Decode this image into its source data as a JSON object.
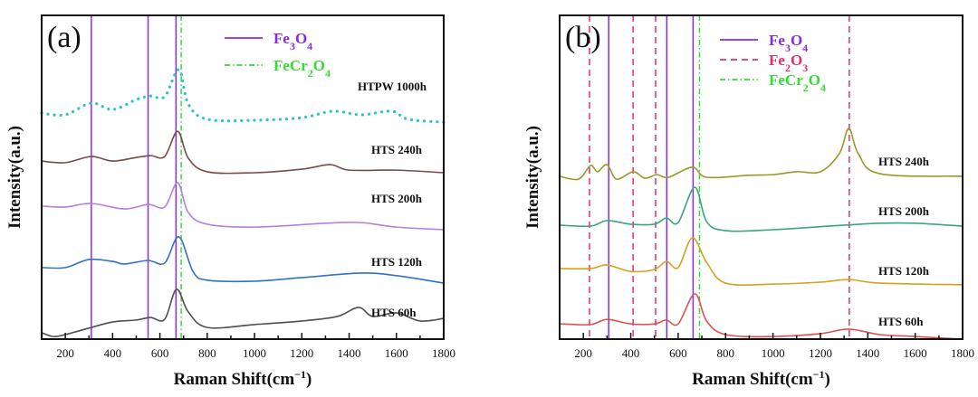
{
  "chart_data": [
    {
      "type": "line",
      "panel_label": "(a)",
      "xlabel": "Raman Shift(cm-1)",
      "ylabel": "Intensity(a.u.)",
      "xlim": [
        100,
        1800
      ],
      "ylim": [
        0,
        100
      ],
      "x_ticks": [
        200,
        400,
        600,
        800,
        1000,
        1200,
        1400,
        1600,
        1800
      ],
      "y_ticks_shown": false,
      "grid": false,
      "legend_position": "top-center",
      "reference_lines": [
        {
          "name": "Fe3O4",
          "style": "solid",
          "color": "#8a2be2",
          "label_color": "#8a2be2",
          "x": [
            310,
            550,
            668
          ]
        },
        {
          "name": "FeCr2O4",
          "style": "dash-dot",
          "color": "#33dd33",
          "label_color": "#33dd33",
          "x": [
            690
          ]
        }
      ],
      "series": [
        {
          "name": "HTPW 1000h",
          "color": "#2cc4c8",
          "style": "dotted",
          "x": [
            100,
            200,
            310,
            400,
            500,
            560,
            620,
            680,
            720,
            800,
            1000,
            1200,
            1330,
            1450,
            1580,
            1650,
            1800
          ],
          "y": [
            69.8,
            69.3,
            72.9,
            70.9,
            74.0,
            75.1,
            74.9,
            83.2,
            72.6,
            67.9,
            67.6,
            68.4,
            70.4,
            69.3,
            70.4,
            67.9,
            67.0
          ]
        },
        {
          "name": "HTS 240h",
          "color": "#7a4a4a",
          "style": "solid",
          "x": [
            100,
            200,
            310,
            400,
            500,
            560,
            620,
            675,
            720,
            800,
            1000,
            1200,
            1320,
            1400,
            1600,
            1800
          ],
          "y": [
            55.0,
            54.5,
            56.4,
            55.0,
            56.1,
            56.7,
            56.4,
            64.2,
            55.9,
            51.7,
            51.4,
            52.5,
            53.9,
            52.2,
            52.2,
            51.4
          ]
        },
        {
          "name": "HTS 200h",
          "color": "#b680d8",
          "style": "solid",
          "x": [
            100,
            200,
            310,
            450,
            550,
            620,
            675,
            720,
            800,
            1000,
            1300,
            1450,
            1600,
            1800
          ],
          "y": [
            41.1,
            40.8,
            41.9,
            40.2,
            41.6,
            40.8,
            48.3,
            39.1,
            35.5,
            34.6,
            35.8,
            36.0,
            34.6,
            33.8
          ]
        },
        {
          "name": "HTS 120h",
          "color": "#2f72c6",
          "style": "solid",
          "x": [
            100,
            200,
            300,
            400,
            450,
            550,
            620,
            680,
            740,
            800,
            1000,
            1200,
            1450,
            1600,
            1800
          ],
          "y": [
            22.1,
            22.1,
            24.6,
            24.0,
            23.2,
            24.3,
            23.5,
            31.6,
            20.9,
            18.2,
            17.9,
            19.0,
            20.4,
            19.6,
            17.3
          ]
        },
        {
          "name": "HTS 60h",
          "color": "#505050",
          "style": "solid",
          "x": [
            100,
            150,
            200,
            300,
            400,
            500,
            560,
            620,
            670,
            720,
            800,
            1000,
            1200,
            1350,
            1440,
            1500,
            1600,
            1700,
            1800
          ],
          "y": [
            2.0,
            0.8,
            1.4,
            3.4,
            5.3,
            5.9,
            6.7,
            6.1,
            15.4,
            8.4,
            3.6,
            4.5,
            5.6,
            7.0,
            9.8,
            7.0,
            8.1,
            5.6,
            6.4
          ]
        }
      ]
    },
    {
      "type": "line",
      "panel_label": "(b)",
      "xlabel": "Raman Shift(cm-1)",
      "ylabel": "Intensity(a.u.)",
      "xlim": [
        100,
        1800
      ],
      "ylim": [
        0,
        100
      ],
      "x_ticks": [
        200,
        400,
        600,
        800,
        1000,
        1200,
        1400,
        1600,
        1800
      ],
      "y_ticks_shown": false,
      "grid": false,
      "legend_position": "top-center",
      "reference_lines": [
        {
          "name": "Fe3O4",
          "style": "solid",
          "color": "#8a2be2",
          "label_color": "#8a2be2",
          "x": [
            307,
            552,
            663
          ]
        },
        {
          "name": "Fe2O3",
          "style": "dashed",
          "color": "#e0306a",
          "label_color": "#e0306a",
          "x": [
            226,
            410,
            505,
            1322
          ]
        },
        {
          "name": "FeCr2O4",
          "style": "dash-dot",
          "color": "#33dd33",
          "label_color": "#33dd33",
          "x": [
            690
          ]
        }
      ],
      "series": [
        {
          "name": "HTS 240h",
          "color": "#9a9a28",
          "style": "solid",
          "x": [
            100,
            180,
            230,
            260,
            300,
            340,
            410,
            460,
            510,
            560,
            660,
            720,
            900,
            1000,
            1100,
            1200,
            1280,
            1320,
            1360,
            1450,
            1800
          ],
          "y": [
            50.3,
            49.4,
            53.6,
            51.7,
            53.9,
            49.4,
            51.7,
            49.7,
            50.8,
            50.0,
            53.1,
            50.0,
            50.6,
            50.8,
            51.7,
            51.7,
            57.3,
            65.1,
            57.3,
            51.1,
            50.3
          ]
        },
        {
          "name": "HTS 200h",
          "color": "#3aa67e",
          "style": "solid",
          "x": [
            100,
            230,
            300,
            400,
            500,
            550,
            600,
            670,
            720,
            800,
            1000,
            1300,
            1450,
            1600,
            1800
          ],
          "y": [
            35.2,
            34.9,
            36.6,
            35.5,
            35.5,
            37.4,
            36.0,
            46.9,
            36.3,
            33.5,
            33.8,
            35.2,
            35.8,
            35.8,
            34.9
          ]
        },
        {
          "name": "HTS 120h",
          "color": "#d4a21e",
          "style": "solid",
          "x": [
            100,
            230,
            300,
            400,
            500,
            550,
            600,
            660,
            720,
            800,
            1000,
            1200,
            1320,
            1450,
            1800
          ],
          "y": [
            21.8,
            21.8,
            22.9,
            20.9,
            21.5,
            24.0,
            22.1,
            31.3,
            23.7,
            17.3,
            17.0,
            17.6,
            18.4,
            17.3,
            16.8
          ]
        },
        {
          "name": "HTS 60h",
          "color": "#e05050",
          "style": "solid",
          "x": [
            100,
            230,
            300,
            400,
            500,
            550,
            600,
            670,
            720,
            800,
            1000,
            1200,
            1320,
            1450,
            1600,
            1800
          ],
          "y": [
            4.7,
            4.5,
            6.1,
            4.7,
            4.7,
            5.9,
            4.7,
            14.0,
            5.6,
            1.4,
            0.8,
            1.7,
            3.1,
            1.4,
            0.8,
            0.0
          ]
        }
      ]
    }
  ]
}
